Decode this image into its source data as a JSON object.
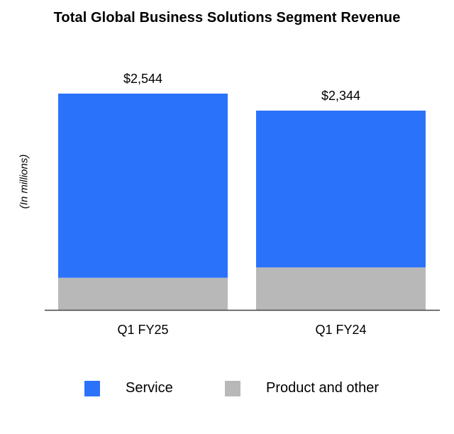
{
  "chart_data": {
    "type": "bar",
    "stacked": true,
    "title": "Total Global Business Solutions Segment Revenue",
    "ylabel": "(In millions)",
    "xlabel": "",
    "categories": [
      "Q1 FY25",
      "Q1 FY24"
    ],
    "series": [
      {
        "name": "Product and other",
        "color": "#b8b8b8",
        "values": [
          378,
          500
        ]
      },
      {
        "name": "Service",
        "color": "#2b72fb",
        "values": [
          2166,
          1844
        ]
      }
    ],
    "totals": [
      2544,
      2344
    ],
    "total_labels": [
      "$2,544",
      "$2,344"
    ],
    "ylim": [
      0,
      2544
    ],
    "grid": false,
    "legend_position": "bottom"
  },
  "legend": [
    {
      "label": "Service",
      "color": "#2b72fb"
    },
    {
      "label": "Product and other",
      "color": "#b8b8b8"
    }
  ]
}
